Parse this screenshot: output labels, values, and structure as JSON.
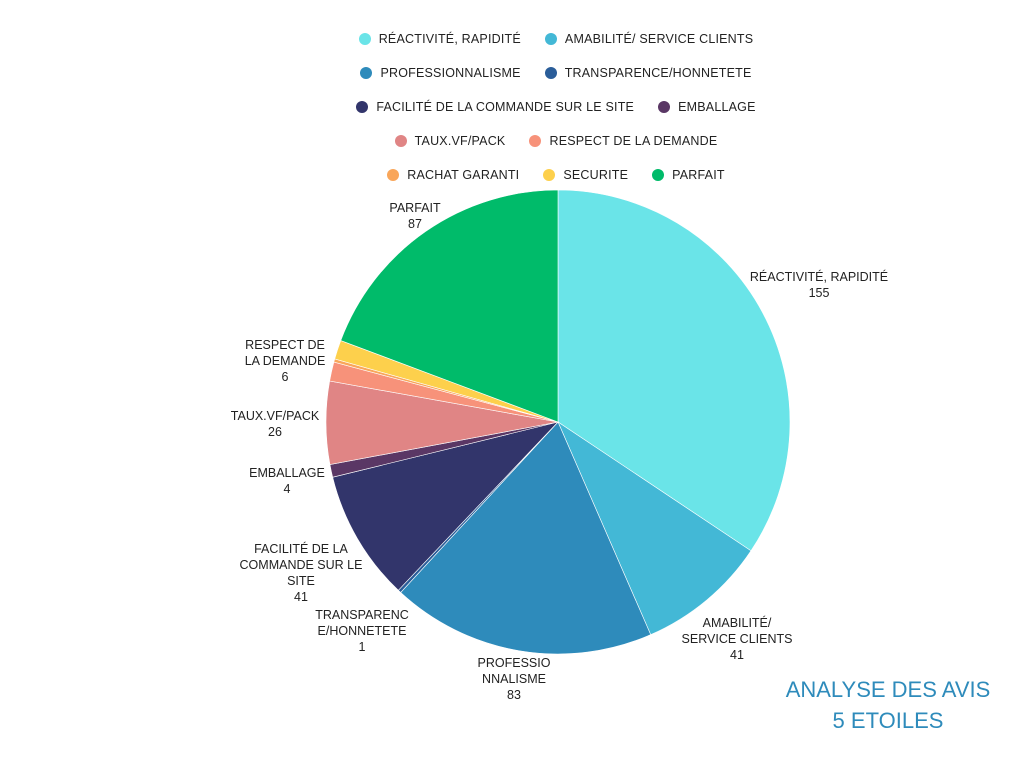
{
  "chart_data": {
    "type": "pie",
    "title_lines": [
      "ANALYSE DES AVIS",
      "5 ETOILES"
    ],
    "start": "top",
    "direction": "clockwise",
    "legend_position": "top",
    "slices": [
      {
        "label": "RÉACTIVITÉ, RAPIDITÉ",
        "value": 155,
        "color": "#6ae4e8",
        "show_label": true
      },
      {
        "label": "AMABILITÉ/ SERVICE CLIENTS",
        "value": 41,
        "color": "#43b8d6",
        "show_label": true
      },
      {
        "label": "PROFESSIONNALISME",
        "value": 83,
        "color": "#2e8bbb",
        "show_label": true
      },
      {
        "label": "TRANSPARENCE/HONNETETE",
        "value": 1,
        "color": "#2a5d99",
        "show_label": true
      },
      {
        "label": "FACILITÉ DE LA COMMANDE SUR LE SITE",
        "value": 41,
        "color": "#32356b",
        "show_label": true
      },
      {
        "label": "EMBALLAGE",
        "value": 4,
        "color": "#5a3765",
        "show_label": true
      },
      {
        "label": "TAUX.VF/PACK",
        "value": 26,
        "color": "#e08585",
        "show_label": true
      },
      {
        "label": "RESPECT DE LA DEMANDE",
        "value": 6,
        "color": "#f7927a",
        "show_label": true
      },
      {
        "label": "RACHAT GARANTI",
        "value": 1,
        "color": "#f9a65a",
        "show_label": false
      },
      {
        "label": "SECURITE",
        "value": 6,
        "color": "#fdd04c",
        "show_label": false
      },
      {
        "label": "PARFAIT",
        "value": 87,
        "color": "#00bb6a",
        "show_label": true
      }
    ]
  }
}
